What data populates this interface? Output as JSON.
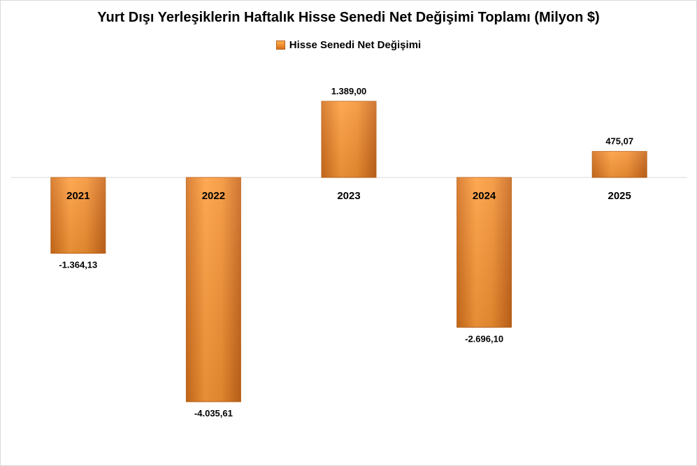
{
  "chart_data": {
    "type": "bar",
    "title": "Yurt Dışı Yerleşiklerin Haftalık Hisse Senedi Net Değişimi Toplamı (Milyon $)",
    "categories": [
      "2021",
      "2022",
      "2023",
      "2024",
      "2025"
    ],
    "series": [
      {
        "name": "Hisse Senedi Net Değişimi",
        "values": [
          -1364.13,
          -4035.61,
          1389.0,
          -2696.1,
          475.07
        ]
      }
    ],
    "data_labels": [
      "-1.364,13",
      "-4.035,61",
      "1.389,00",
      "-2.696,10",
      "475,07"
    ],
    "ylim": [
      -4035.61,
      1389.0
    ],
    "legend_position": "top",
    "grid": false,
    "bar_color": "#ee8a2a",
    "bar_edge_color": "#c0661a",
    "baseline_color": "#d9d9d9"
  }
}
